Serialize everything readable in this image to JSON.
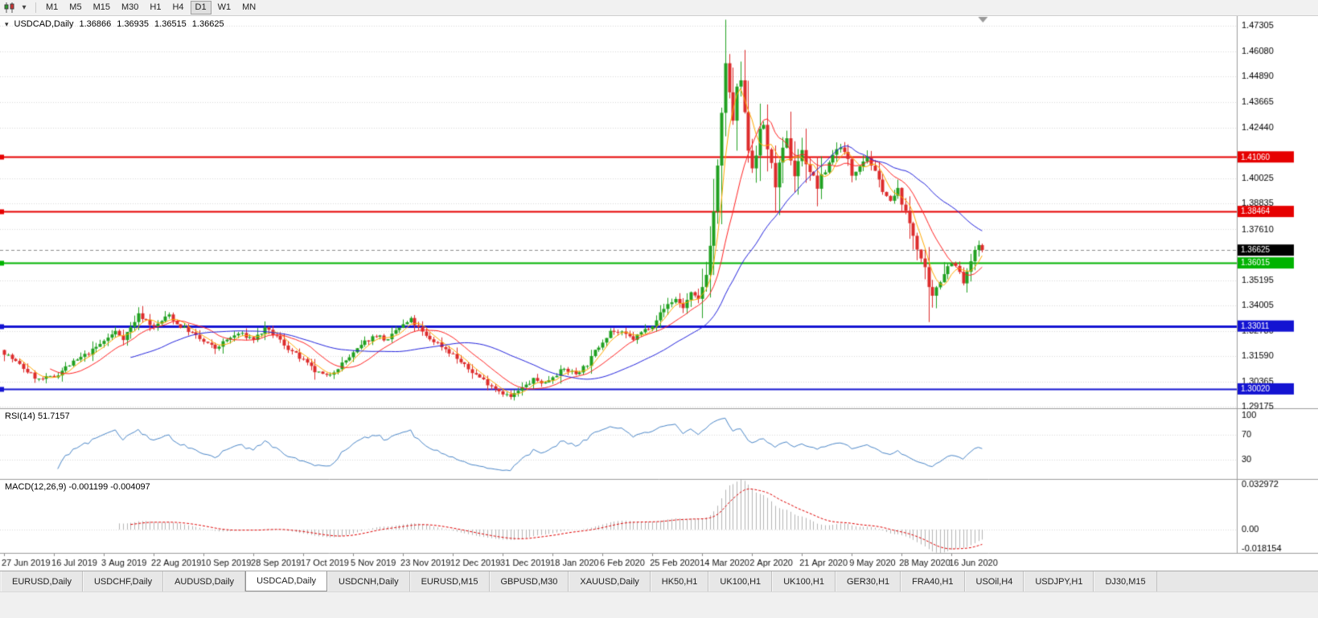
{
  "toolbar": {
    "dropdown_glyph": "▾",
    "timeframes": [
      {
        "label": "M1",
        "active": false
      },
      {
        "label": "M5",
        "active": false
      },
      {
        "label": "M15",
        "active": false
      },
      {
        "label": "M30",
        "active": false
      },
      {
        "label": "H1",
        "active": false
      },
      {
        "label": "H4",
        "active": false
      },
      {
        "label": "D1",
        "active": true
      },
      {
        "label": "W1",
        "active": false
      },
      {
        "label": "MN",
        "active": false
      }
    ]
  },
  "chart": {
    "title_symbol": "USDCAD,Daily",
    "ohlc": {
      "open": "1.36866",
      "high": "1.36935",
      "low": "1.36515",
      "close": "1.36625"
    },
    "price_axis_labels": [
      "1.47305",
      "1.46080",
      "1.44890",
      "1.43665",
      "1.42440",
      "1.40025",
      "1.38835",
      "1.37610",
      "1.35195",
      "1.34005",
      "1.32780",
      "1.31590",
      "1.30365",
      "1.29175"
    ],
    "date_labels": [
      "27 Jun 2019",
      "16 Jul 2019",
      "3 Aug 2019",
      "22 Aug 2019",
      "10 Sep 2019",
      "28 Sep 2019",
      "17 Oct 2019",
      "5 Nov 2019",
      "23 Nov 2019",
      "12 Dec 2019",
      "31 Dec 2019",
      "18 Jan 2020",
      "6 Feb 2020",
      "25 Feb 2020",
      "14 Mar 2020",
      "2 Apr 2020",
      "21 Apr 2020",
      "9 May 2020",
      "28 May 2020",
      "16 Jun 2020"
    ]
  },
  "indicators": {
    "rsi": {
      "label": "RSI(14) 51.7157",
      "levels": [
        "100",
        "70",
        "30"
      ]
    },
    "macd": {
      "label": "MACD(12,26,9) -0.001199 -0.004097",
      "axis": [
        "0.032972",
        "0.00",
        "-0.018154"
      ]
    }
  },
  "tabs": [
    {
      "label": "EURUSD,Daily",
      "active": false
    },
    {
      "label": "USDCHF,Daily",
      "active": false
    },
    {
      "label": "AUDUSD,Daily",
      "active": false
    },
    {
      "label": "USDCAD,Daily",
      "active": true
    },
    {
      "label": "USDCNH,Daily",
      "active": false
    },
    {
      "label": "EURUSD,M15",
      "active": false
    },
    {
      "label": "GBPUSD,M30",
      "active": false
    },
    {
      "label": "XAUUSD,Daily",
      "active": false
    },
    {
      "label": "HK50,H1",
      "active": false
    },
    {
      "label": "UK100,H1",
      "active": false
    },
    {
      "label": "UK100,H1",
      "active": false
    },
    {
      "label": "GER30,H1",
      "active": false
    },
    {
      "label": "FRA40,H1",
      "active": false
    },
    {
      "label": "USOil,H4",
      "active": false
    },
    {
      "label": "USDJPY,H1",
      "active": false
    },
    {
      "label": "DJ30,M15",
      "active": false
    }
  ],
  "colors": {
    "up_candle": "#21a121",
    "down_candle": "#dd2c2c",
    "ma_fast": "#ffaa00",
    "ma_mid": "#ff2222",
    "ma_slow": "#2222dd",
    "rsi_line": "#4a86c8",
    "macd_hist": "#b4b4b4",
    "macd_signal": "#e00000",
    "grid": "#d9d9d9"
  },
  "chart_data": {
    "type": "candlestick",
    "symbol": "USDCAD",
    "period": "Daily",
    "bars": 256,
    "seed": 7,
    "bars_per_label": 13,
    "levels": [
      {
        "label": "1.41060",
        "price": 1.4106,
        "color": "#e60000",
        "style": "solid",
        "width": 2
      },
      {
        "label": "1.38464",
        "price": 1.38464,
        "color": "#e60000",
        "style": "solid",
        "width": 2
      },
      {
        "label": "1.36625",
        "price": 1.36625,
        "color": "#000000",
        "style": "dashed",
        "width": 1,
        "line_color": "#8c8c8c"
      },
      {
        "label": "1.36015",
        "price": 1.36015,
        "color": "#00b300",
        "style": "solid",
        "width": 2
      },
      {
        "label": "1.33011",
        "price": 1.33011,
        "color": "#1414d2",
        "style": "solid",
        "width": 3
      },
      {
        "label": "1.30020",
        "price": 1.3002,
        "color": "#1414d2",
        "style": "solid",
        "width": 2
      }
    ],
    "anchors": [
      [
        0,
        1.3175
      ],
      [
        3,
        1.313
      ],
      [
        6,
        1.3085
      ],
      [
        9,
        1.3045
      ],
      [
        13,
        1.306
      ],
      [
        16,
        1.3105
      ],
      [
        20,
        1.315
      ],
      [
        23,
        1.3185
      ],
      [
        26,
        1.323
      ],
      [
        29,
        1.3275
      ],
      [
        31,
        1.3245
      ],
      [
        33,
        1.3295
      ],
      [
        35,
        1.3355
      ],
      [
        37,
        1.333
      ],
      [
        39,
        1.3295
      ],
      [
        41,
        1.3325
      ],
      [
        43,
        1.3355
      ],
      [
        45,
        1.331
      ],
      [
        48,
        1.328
      ],
      [
        52,
        1.3225
      ],
      [
        55,
        1.3195
      ],
      [
        58,
        1.3235
      ],
      [
        61,
        1.3265
      ],
      [
        65,
        1.324
      ],
      [
        68,
        1.3285
      ],
      [
        71,
        1.325
      ],
      [
        74,
        1.3195
      ],
      [
        78,
        1.3135
      ],
      [
        81,
        1.3085
      ],
      [
        84,
        1.306
      ],
      [
        87,
        1.3105
      ],
      [
        91,
        1.317
      ],
      [
        94,
        1.3225
      ],
      [
        97,
        1.326
      ],
      [
        100,
        1.323
      ],
      [
        102,
        1.328
      ],
      [
        104,
        1.3305
      ],
      [
        106,
        1.333
      ],
      [
        108,
        1.329
      ],
      [
        110,
        1.325
      ],
      [
        113,
        1.322
      ],
      [
        117,
        1.3165
      ],
      [
        120,
        1.311
      ],
      [
        123,
        1.307
      ],
      [
        126,
        1.303
      ],
      [
        129,
        1.2995
      ],
      [
        132,
        1.2962
      ],
      [
        135,
        1.3005
      ],
      [
        138,
        1.3045
      ],
      [
        141,
        1.303
      ],
      [
        143,
        1.3065
      ],
      [
        146,
        1.3095
      ],
      [
        149,
        1.3075
      ],
      [
        152,
        1.312
      ],
      [
        154,
        1.318
      ],
      [
        156,
        1.323
      ],
      [
        158,
        1.328
      ],
      [
        161,
        1.3265
      ],
      [
        164,
        1.324
      ],
      [
        166,
        1.327
      ],
      [
        169,
        1.331
      ],
      [
        171,
        1.336
      ],
      [
        173,
        1.3405
      ],
      [
        175,
        1.343
      ],
      [
        177,
        1.339
      ],
      [
        179,
        1.3455
      ],
      [
        181,
        1.342
      ],
      [
        183,
        1.356
      ],
      [
        184,
        1.368
      ],
      [
        185,
        1.385
      ],
      [
        186,
        1.405
      ],
      [
        187,
        1.43
      ],
      [
        188,
        1.456
      ],
      [
        189,
        1.44
      ],
      [
        190,
        1.428
      ],
      [
        191,
        1.442
      ],
      [
        192,
        1.447
      ],
      [
        193,
        1.43
      ],
      [
        194,
        1.415
      ],
      [
        195,
        1.406
      ],
      [
        196,
        1.413
      ],
      [
        197,
        1.422
      ],
      [
        198,
        1.426
      ],
      [
        199,
        1.415
      ],
      [
        200,
        1.406
      ],
      [
        201,
        1.398
      ],
      [
        202,
        1.406
      ],
      [
        203,
        1.413
      ],
      [
        204,
        1.418
      ],
      [
        205,
        1.41
      ],
      [
        206,
        1.402
      ],
      [
        207,
        1.409
      ],
      [
        208,
        1.413
      ],
      [
        210,
        1.404
      ],
      [
        212,
        1.3965
      ],
      [
        214,
        1.404
      ],
      [
        216,
        1.412
      ],
      [
        218,
        1.416
      ],
      [
        220,
        1.409
      ],
      [
        221,
        1.402
      ],
      [
        223,
        1.407
      ],
      [
        225,
        1.411
      ],
      [
        227,
        1.403
      ],
      [
        229,
        1.395
      ],
      [
        231,
        1.389
      ],
      [
        233,
        1.395
      ],
      [
        234,
        1.389
      ],
      [
        236,
        1.379
      ],
      [
        238,
        1.368
      ],
      [
        240,
        1.356
      ],
      [
        241,
        1.347
      ],
      [
        242,
        1.343
      ],
      [
        243,
        1.349
      ],
      [
        245,
        1.356
      ],
      [
        247,
        1.361
      ],
      [
        249,
        1.3555
      ],
      [
        250,
        1.3505
      ],
      [
        251,
        1.355
      ],
      [
        252,
        1.361
      ],
      [
        253,
        1.3655
      ],
      [
        254,
        1.3685
      ],
      [
        255,
        1.36625
      ]
    ],
    "wicks": [
      [
        132,
        "l",
        1.2952
      ],
      [
        188,
        "h",
        1.4668
      ],
      [
        192,
        "h",
        1.456
      ],
      [
        241,
        "l",
        1.332
      ]
    ],
    "last_bar": {
      "open": 1.36866,
      "high": 1.36935,
      "low": 1.36515,
      "close": 1.36625
    }
  }
}
